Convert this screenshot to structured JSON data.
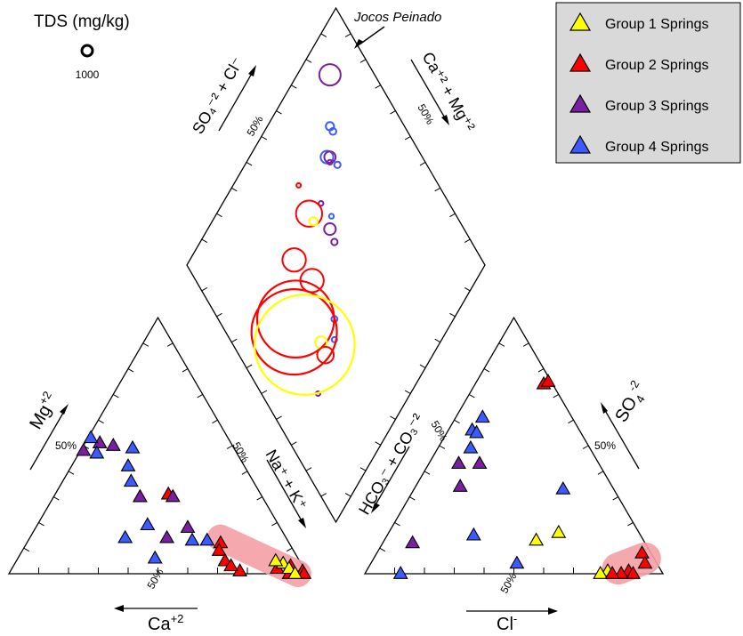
{
  "chart_data": {
    "type": "scatter",
    "subtype": "piper-diagram",
    "tds_legend": {
      "title": "TDS (mg/kg)",
      "reference_value": "1000"
    },
    "annotation": "Jocos Peinado",
    "legend": {
      "placement": "top-right",
      "entries": [
        {
          "label": "Group 1 Springs",
          "color": "#ffff00"
        },
        {
          "label": "Group 2 Springs",
          "color": "#ff0000"
        },
        {
          "label": "Group 3 Springs",
          "color": "#7a1fa2"
        },
        {
          "label": "Group 4 Springs",
          "color": "#3b5bff"
        }
      ]
    },
    "labels": {
      "cation_mg": "Mg",
      "cation_mg_sup": "+2",
      "cation_ca": "Ca",
      "cation_ca_sup": "+2",
      "cation_nak": "Na⁺ + K⁺",
      "anion_so4": "SO",
      "anion_so4_sub": "4",
      "anion_so4_sup": "-2",
      "anion_cl": "Cl",
      "anion_cl_sup": "-",
      "anion_hco3": "HCO₃⁻ + CO₃⁻²",
      "diamond_so4cl": "SO₄⁻² + Cl⁻",
      "diamond_camg": "Ca⁺² + Mg⁺²",
      "fifty": "50%"
    },
    "cation_points": [
      {
        "g": 2,
        "a": 31,
        "b": 38
      },
      {
        "g": 3,
        "a": 50,
        "b": 10
      },
      {
        "g": 3,
        "a": 51,
        "b": 5
      },
      {
        "g": 4,
        "a": 47,
        "b": 6
      },
      {
        "g": 4,
        "a": 53,
        "b": 1
      },
      {
        "g": 3,
        "a": 48,
        "b": 1
      },
      {
        "g": 4,
        "a": 49,
        "b": 17
      },
      {
        "g": 4,
        "a": 42,
        "b": 19
      },
      {
        "g": 4,
        "a": 36,
        "b": 23
      },
      {
        "g": 3,
        "a": 30,
        "b": 40
      },
      {
        "g": 3,
        "a": 30,
        "b": 29
      },
      {
        "g": 3,
        "a": 14,
        "b": 46
      },
      {
        "g": 3,
        "a": 18,
        "b": 51
      },
      {
        "g": 4,
        "a": 13,
        "b": 55
      },
      {
        "g": 4,
        "a": 14,
        "b": 32
      },
      {
        "g": 4,
        "a": 19,
        "b": 37
      },
      {
        "g": 4,
        "a": 6,
        "b": 46
      },
      {
        "g": 4,
        "a": 13,
        "b": 60
      },
      {
        "g": 2,
        "a": 12,
        "b": 65
      },
      {
        "g": 2,
        "a": 9,
        "b": 66
      },
      {
        "g": 2,
        "a": 5,
        "b": 70
      },
      {
        "g": 2,
        "a": 1,
        "b": 77
      },
      {
        "g": 2,
        "a": 3,
        "b": 73
      },
      {
        "g": 2,
        "a": 0,
        "b": 94
      },
      {
        "g": 2,
        "a": 3,
        "b": 93
      },
      {
        "g": 2,
        "a": 1,
        "b": 98
      },
      {
        "g": 2,
        "a": 0,
        "b": 99
      },
      {
        "g": 2,
        "a": 2,
        "b": 89
      },
      {
        "g": 1,
        "a": 4,
        "b": 90
      },
      {
        "g": 1,
        "a": 2,
        "b": 93
      },
      {
        "g": 1,
        "a": 5,
        "b": 87
      },
      {
        "g": 1,
        "a": 0,
        "b": 96
      }
    ],
    "anion_points": [
      {
        "g": 2,
        "a": 74,
        "b": 23
      },
      {
        "g": 2,
        "a": 75,
        "b": 24
      },
      {
        "g": 4,
        "a": 61,
        "b": 9
      },
      {
        "g": 4,
        "a": 56,
        "b": 8
      },
      {
        "g": 4,
        "a": 55,
        "b": 10
      },
      {
        "g": 4,
        "a": 49,
        "b": 11
      },
      {
        "g": 3,
        "a": 43,
        "b": 10
      },
      {
        "g": 3,
        "a": 43,
        "b": 17
      },
      {
        "g": 3,
        "a": 34,
        "b": 15
      },
      {
        "g": 4,
        "a": 33,
        "b": 50
      },
      {
        "g": 1,
        "a": 16,
        "b": 57
      },
      {
        "g": 1,
        "a": 13,
        "b": 51
      },
      {
        "g": 3,
        "a": 12,
        "b": 10
      },
      {
        "g": 4,
        "a": 15,
        "b": 29
      },
      {
        "g": 4,
        "a": 4,
        "b": 49
      },
      {
        "g": 4,
        "a": 0,
        "b": 12
      },
      {
        "g": 2,
        "a": 8,
        "b": 89
      },
      {
        "g": 2,
        "a": 4,
        "b": 92
      },
      {
        "g": 2,
        "a": 1,
        "b": 88
      },
      {
        "g": 2,
        "a": 0,
        "b": 90
      },
      {
        "g": 2,
        "a": 0,
        "b": 86
      },
      {
        "g": 1,
        "a": 1,
        "b": 81
      },
      {
        "g": 1,
        "a": 0,
        "b": 79
      },
      {
        "g": 2,
        "a": 0,
        "b": 83
      }
    ],
    "diamond_circles": [
      {
        "g": 3,
        "u": 89,
        "v": 85,
        "tds": 1000
      },
      {
        "g": 4,
        "u": 79,
        "v": 75,
        "tds": 150
      },
      {
        "g": 4,
        "u": 77,
        "v": 75,
        "tds": 100
      },
      {
        "g": 4,
        "u": 74,
        "v": 68,
        "tds": 350
      },
      {
        "g": 4,
        "u": 69,
        "v": 70,
        "tds": 90
      },
      {
        "g": 3,
        "u": 73,
        "v": 69,
        "tds": 280
      },
      {
        "g": 3,
        "u": 72,
        "v": 68,
        "tds": 50
      },
      {
        "g": 3,
        "u": 59,
        "v": 55,
        "tds": 300
      },
      {
        "g": 3,
        "u": 55,
        "v": 54,
        "tds": 90
      },
      {
        "g": 4,
        "u": 61,
        "v": 58,
        "tds": 50
      },
      {
        "g": 4,
        "u": 40,
        "v": 39,
        "tds": 80
      },
      {
        "g": 4,
        "u": 36,
        "v": 35,
        "tds": 60
      },
      {
        "g": 3,
        "u": 31,
        "v": 19,
        "tds": 30
      },
      {
        "g": 3,
        "u": 67,
        "v": 57,
        "tds": 50
      },
      {
        "g": 2,
        "u": 78,
        "v": 53,
        "tds": 30
      },
      {
        "g": 2,
        "u": 69,
        "v": 51,
        "tds": 1500
      },
      {
        "g": 1,
        "u": 66,
        "v": 51,
        "tds": 150
      },
      {
        "g": 2,
        "u": 65,
        "v": 37,
        "tds": 1200
      },
      {
        "g": 2,
        "u": 55,
        "v": 39,
        "tds": 1200
      },
      {
        "g": 2,
        "u": 53,
        "v": 26,
        "tds": 13000
      },
      {
        "g": 2,
        "u": 51,
        "v": 23,
        "tds": 16000
      },
      {
        "g": 1,
        "u": 45,
        "v": 24,
        "tds": 22000
      },
      {
        "g": 1,
        "u": 40,
        "v": 30,
        "tds": 300
      },
      {
        "g": 2,
        "u": 36,
        "v": 29,
        "tds": 600
      }
    ],
    "highlights": [
      {
        "panel": "cation"
      },
      {
        "panel": "anion"
      }
    ]
  }
}
